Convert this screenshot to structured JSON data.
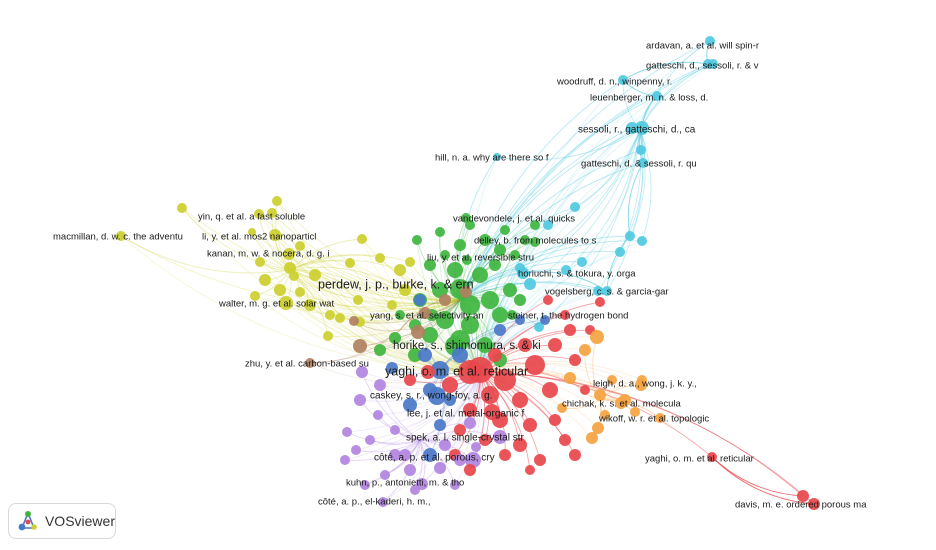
{
  "app": {
    "name": "VOSviewer"
  },
  "network": {
    "clusters": [
      {
        "id": 1,
        "color": "#e8474c"
      },
      {
        "id": 2,
        "color": "#3fb53f"
      },
      {
        "id": 3,
        "color": "#4a78c8"
      },
      {
        "id": 4,
        "color": "#cccf2e"
      },
      {
        "id": 5,
        "color": "#b184e0"
      },
      {
        "id": 6,
        "color": "#4fc9e0"
      },
      {
        "id": 7,
        "color": "#f5a340"
      },
      {
        "id": 8,
        "color": "#b08060"
      }
    ],
    "labels": [
      {
        "text": "ardavan, a. et al. will spin-r",
        "cluster": 6
      },
      {
        "text": "gatteschi, d., sessoli, r. & v",
        "cluster": 6
      },
      {
        "text": "woodruff, d. n., winpenny, r.",
        "cluster": 6
      },
      {
        "text": "leuenberger, m. n. & loss, d.",
        "cluster": 6
      },
      {
        "text": "sessoli, r., gatteschi, d., ca",
        "cluster": 6
      },
      {
        "text": "hill, n. a. why are there so f",
        "cluster": 6
      },
      {
        "text": "gatteschi, d. & sessoli, r. qu",
        "cluster": 6
      },
      {
        "text": "vandevondele, j. et al. quicks",
        "cluster": 2
      },
      {
        "text": "yin, q. et al. a fast soluble",
        "cluster": 4
      },
      {
        "text": "macmillan, d. w. c. the adventu",
        "cluster": 4
      },
      {
        "text": "li, y. et al. mos2 nanoparticl",
        "cluster": 4
      },
      {
        "text": "delley, b. from molecules to s",
        "cluster": 2
      },
      {
        "text": "kanan, m. w. & nocera, d. g. i",
        "cluster": 4
      },
      {
        "text": "liu, y. et al. reversible stru",
        "cluster": 2
      },
      {
        "text": "horiuchi, s. & tokura, y. orga",
        "cluster": 6
      },
      {
        "text": "perdew, j. p., burke, k. & ern",
        "cluster": 2
      },
      {
        "text": "vogelsberg, c. s. & garcia-gar",
        "cluster": 6
      },
      {
        "text": "walter, m. g. et al. solar wat",
        "cluster": 4
      },
      {
        "text": "yang, s. et al. selectivity an",
        "cluster": 2
      },
      {
        "text": "steiner, t. the hydrogen bond",
        "cluster": 2
      },
      {
        "text": "horike, s., shimomura, s. & ki",
        "cluster": 2
      },
      {
        "text": "zhu, y. et al. carbon-based su",
        "cluster": 8
      },
      {
        "text": "yaghi, o. m. et al. reticular",
        "cluster": 1
      },
      {
        "text": "leigh, d. a., wong, j. k. y.,",
        "cluster": 7
      },
      {
        "text": "caskey, s. r., wong-foy, a. g.",
        "cluster": 3
      },
      {
        "text": "chichak, k. s. et al. molecula",
        "cluster": 7
      },
      {
        "text": "lee, j. et al. metal-organic f",
        "cluster": 1
      },
      {
        "text": "wikoff, w. r. et al. topologic",
        "cluster": 7
      },
      {
        "text": "spek, a. l. single-crystal str",
        "cluster": 5
      },
      {
        "text": "yaghi, o. m. et al. reticular",
        "cluster": 1
      },
      {
        "text": "côté, a. p. et al. porous, cry",
        "cluster": 5
      },
      {
        "text": "kuhn, p., antonietti, m. & tho",
        "cluster": 5
      },
      {
        "text": "côté, a. p., el-kaderi, h. m.,",
        "cluster": 5
      },
      {
        "text": "davis, m. e. ordered porous ma",
        "cluster": 1
      }
    ]
  }
}
